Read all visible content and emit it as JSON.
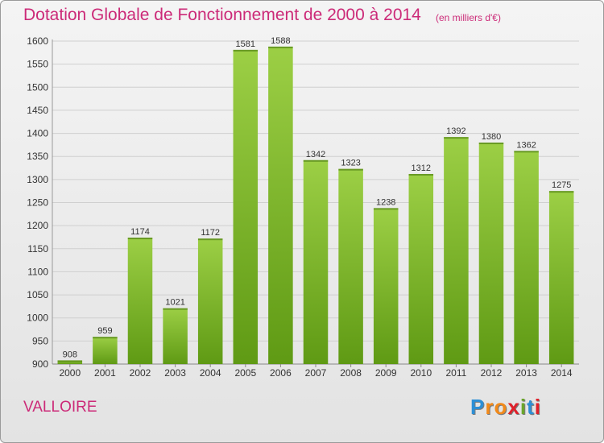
{
  "header": {
    "title": "Dotation Globale de Fonctionnement de 2000 à 2014",
    "unit": "(en milliers d'€)"
  },
  "footer": {
    "commune": "VALLOIRE",
    "logo": [
      "P",
      "r",
      "o",
      "x",
      "i",
      "t",
      "i"
    ]
  },
  "colors": {
    "title": "#cc2a78",
    "bar_top": "#9ccf45",
    "bar_bottom": "#5f9a14",
    "grid": "#cfcfcf"
  },
  "chart_data": {
    "type": "bar",
    "title": "Dotation Globale de Fonctionnement de 2000 à 2014",
    "xlabel": "",
    "ylabel": "(en milliers d'€)",
    "categories": [
      "2000",
      "2001",
      "2002",
      "2003",
      "2004",
      "2005",
      "2006",
      "2007",
      "2008",
      "2009",
      "2010",
      "2011",
      "2012",
      "2013",
      "2014"
    ],
    "values": [
      908,
      959,
      1174,
      1021,
      1172,
      1581,
      1588,
      1342,
      1323,
      1238,
      1312,
      1392,
      1380,
      1362,
      1275
    ],
    "ylim": [
      900,
      1600
    ],
    "yticks": [
      900,
      950,
      1000,
      1050,
      1100,
      1150,
      1200,
      1250,
      1300,
      1350,
      1400,
      1450,
      1500,
      1550,
      1600
    ],
    "grid": true
  }
}
